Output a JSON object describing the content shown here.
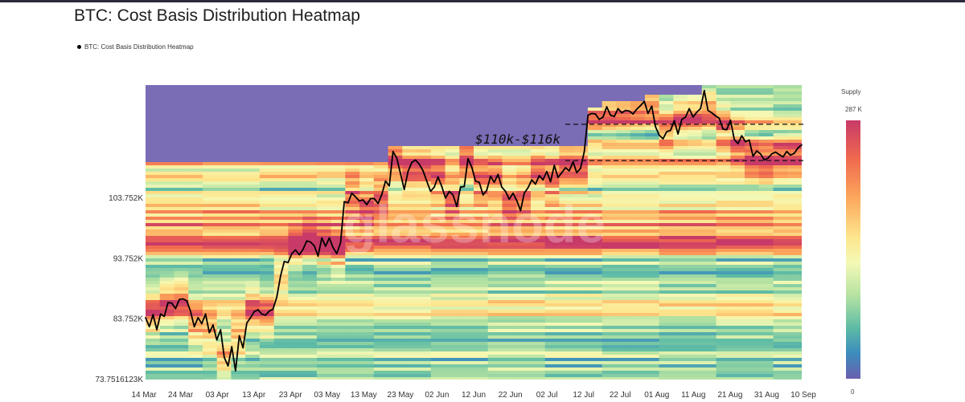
{
  "title": "BTC: Cost Basis Distribution Heatmap",
  "legend": {
    "label": "BTC: Cost Basis Distribution Heatmap",
    "marker_color": "#000000"
  },
  "watermark": "glassnode",
  "colorbar": {
    "title": "Supply",
    "max_label": "287 K",
    "min_label": "0"
  },
  "annotation": {
    "text": "$110k-$116k",
    "lower": 110000,
    "upper": 116000
  },
  "chart_data": {
    "type": "heatmap",
    "title": "BTC: Cost Basis Distribution Heatmap",
    "x_tick_labels": [
      "14 Mar",
      "24 Mar",
      "03 Apr",
      "13 Apr",
      "23 Apr",
      "03 May",
      "13 May",
      "23 May",
      "02 Jun",
      "12 Jun",
      "22 Jun",
      "02 Jul",
      "12 Jul",
      "22 Jul",
      "01 Aug",
      "11 Aug",
      "21 Aug",
      "31 Aug",
      "10 Sep"
    ],
    "y_tick_labels": [
      "103.752K",
      "93.752K",
      "83.752K",
      "73.7516123K"
    ],
    "y_tick_values": [
      103752,
      93752,
      83752,
      73751.6
    ],
    "ylim": [
      73751.6,
      122500
    ],
    "series": [
      {
        "name": "BTC: Cost Basis Distribution Heatmap",
        "type": "line",
        "color": "#000000",
        "values": [
          84000,
          82500,
          84500,
          82000,
          84600,
          84200,
          86500,
          86400,
          85500,
          87000,
          87100,
          86800,
          85000,
          82500,
          84000,
          83000,
          84600,
          81500,
          82800,
          80300,
          82000,
          77400,
          76000,
          79200,
          75200,
          81000,
          79000,
          83100,
          84000,
          85000,
          85300,
          84600,
          84400,
          85100,
          85400,
          87400,
          90900,
          93300,
          93100,
          94600,
          95200,
          94400,
          95300,
          96700,
          96500,
          95900,
          94200,
          97200,
          95800,
          97200,
          95600,
          94600,
          96400,
          103200,
          103000,
          104600,
          104000,
          103300,
          103500,
          102700,
          103700,
          103700,
          102900,
          104400,
          106600,
          105800,
          111500,
          110400,
          107800,
          105200,
          108200,
          109700,
          110100,
          109400,
          108300,
          106600,
          104900,
          105600,
          107300,
          105700,
          103800,
          104900,
          104300,
          102400,
          105600,
          105700,
          110300,
          108900,
          106600,
          106400,
          104300,
          105100,
          107400,
          106400,
          107700,
          105600,
          104900,
          103600,
          104600,
          103400,
          101700,
          104600,
          105500,
          106800,
          106100,
          107500,
          106800,
          108200,
          106500,
          109200,
          107200,
          108000,
          108800,
          108300,
          109800,
          108000,
          108700,
          111500,
          117500,
          117800,
          117700,
          116800,
          117200,
          118900,
          117500,
          117300,
          118600,
          117900,
          118300,
          118200,
          117700,
          118500,
          119100,
          119800,
          117800,
          119000,
          115600,
          114200,
          113600,
          114800,
          115000,
          116600,
          114400,
          116800,
          117200,
          118600,
          117200,
          118000,
          118600,
          121600,
          118300,
          117900,
          117400,
          117000,
          115200,
          115100,
          116700,
          113500,
          112800,
          114100,
          113100,
          113400,
          110700,
          111600,
          111100,
          110100,
          110400,
          111100,
          111400,
          111000,
          110600,
          111500,
          110900,
          111200,
          112100,
          112600
        ]
      }
    ],
    "legend_position": "top-left",
    "grid": false
  }
}
